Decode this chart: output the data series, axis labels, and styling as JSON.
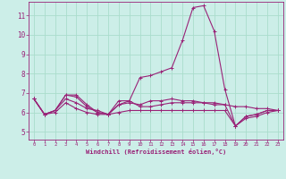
{
  "xlabel": "Windchill (Refroidissement éolien,°C)",
  "bg_color": "#cceee8",
  "line_color": "#992277",
  "grid_color": "#aaddcc",
  "xlim": [
    -0.5,
    23.5
  ],
  "ylim": [
    4.6,
    11.7
  ],
  "yticks": [
    5,
    6,
    7,
    8,
    9,
    10,
    11
  ],
  "xticks": [
    0,
    1,
    2,
    3,
    4,
    5,
    6,
    7,
    8,
    9,
    10,
    11,
    12,
    13,
    14,
    15,
    16,
    17,
    18,
    19,
    20,
    21,
    22,
    23
  ],
  "line1_x": [
    0,
    1,
    2,
    3,
    4,
    5,
    6,
    7,
    8,
    9,
    10,
    11,
    12,
    13,
    14,
    15,
    16,
    17,
    18,
    19,
    20,
    21,
    22,
    23
  ],
  "line1_y": [
    6.7,
    5.9,
    6.1,
    6.9,
    6.9,
    6.4,
    6.0,
    5.9,
    6.4,
    6.6,
    6.3,
    6.3,
    6.4,
    6.5,
    6.5,
    6.5,
    6.5,
    6.4,
    6.4,
    6.3,
    6.3,
    6.2,
    6.2,
    6.1
  ],
  "line2_x": [
    0,
    1,
    2,
    3,
    4,
    5,
    6,
    7,
    8,
    9,
    10,
    11,
    12,
    13,
    14,
    15,
    16,
    17,
    18,
    19,
    20,
    21,
    22,
    23
  ],
  "line2_y": [
    6.7,
    5.9,
    6.1,
    6.9,
    6.8,
    6.3,
    6.0,
    5.9,
    6.6,
    6.6,
    7.8,
    7.9,
    8.1,
    8.3,
    9.7,
    11.4,
    11.5,
    10.2,
    7.2,
    5.3,
    5.8,
    5.9,
    6.1,
    6.1
  ],
  "line3_x": [
    0,
    1,
    2,
    3,
    4,
    5,
    6,
    7,
    8,
    9,
    10,
    11,
    12,
    13,
    14,
    15,
    16,
    17,
    18,
    19,
    20,
    21,
    22,
    23
  ],
  "line3_y": [
    6.7,
    5.9,
    6.1,
    6.7,
    6.5,
    6.2,
    6.1,
    5.9,
    6.4,
    6.5,
    6.4,
    6.6,
    6.6,
    6.7,
    6.6,
    6.6,
    6.5,
    6.5,
    6.4,
    5.3,
    5.8,
    5.9,
    6.1,
    6.1
  ],
  "line4_x": [
    0,
    1,
    2,
    3,
    4,
    5,
    6,
    7,
    8,
    9,
    10,
    11,
    12,
    13,
    14,
    15,
    16,
    17,
    18,
    19,
    20,
    21,
    22,
    23
  ],
  "line4_y": [
    6.7,
    5.9,
    6.0,
    6.5,
    6.2,
    6.0,
    5.9,
    5.9,
    6.0,
    6.1,
    6.1,
    6.1,
    6.1,
    6.1,
    6.1,
    6.1,
    6.1,
    6.1,
    6.1,
    5.3,
    5.7,
    5.8,
    6.0,
    6.1
  ]
}
